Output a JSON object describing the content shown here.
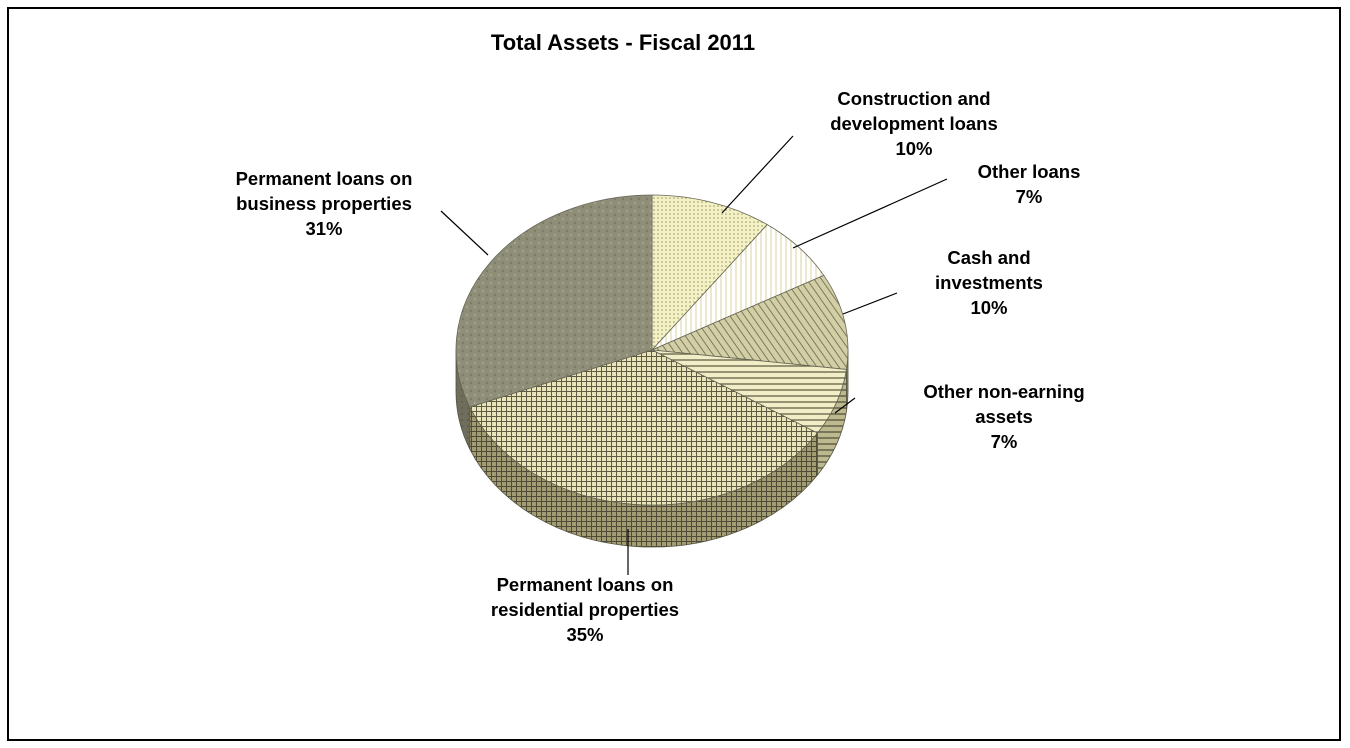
{
  "chart_data": {
    "type": "pie",
    "title": "Total Assets - Fiscal 2011",
    "slices": [
      {
        "lines": [
          "Construction and",
          "development loans"
        ],
        "value_label": "10%",
        "value": 10,
        "color": "#f4f1c4"
      },
      {
        "lines": [
          "Other loans"
        ],
        "value_label": "7%",
        "value": 7,
        "color": "#ffffff"
      },
      {
        "lines": [
          "Cash and",
          "investments"
        ],
        "value_label": "10%",
        "value": 10,
        "color": "#d2cfa6"
      },
      {
        "lines": [
          "Other non-earning",
          "assets"
        ],
        "value_label": "7%",
        "value": 7,
        "color": "#f0edc7"
      },
      {
        "lines": [
          "Permanent loans on",
          "residential properties"
        ],
        "value_label": "35%",
        "value": 35,
        "color": "#e9e4ba"
      },
      {
        "lines": [
          "Permanent loans on",
          "business properties"
        ],
        "value_label": "31%",
        "value": 31,
        "color": "#8f8e78"
      }
    ],
    "legend": "none",
    "grid": false,
    "style": "3d-pie"
  }
}
